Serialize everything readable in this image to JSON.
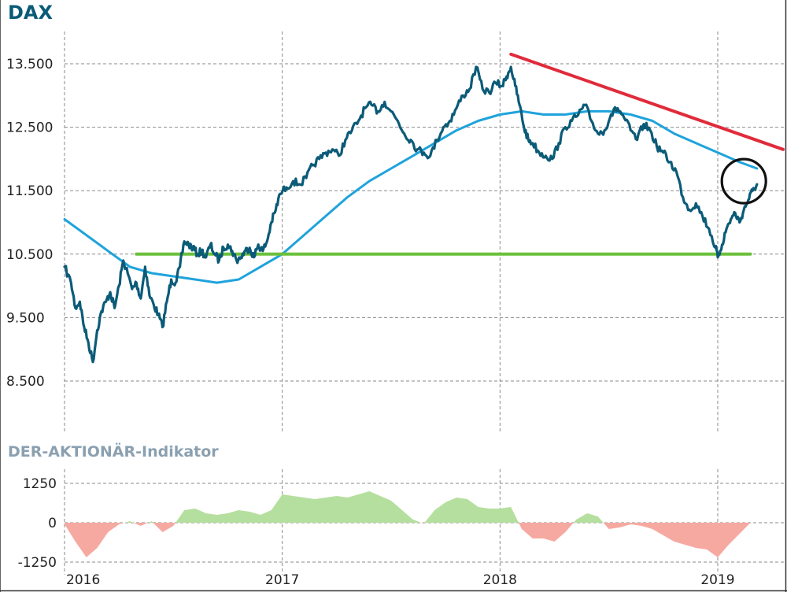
{
  "colors": {
    "price": "#0b5b78",
    "moving_average": "#1fa3dc",
    "resistance": "#e02b3b",
    "support": "#6cc03c",
    "positive_fill": "#b5df9e",
    "negative_fill": "#f6a9a1",
    "title": "#0b5b78",
    "subtitle": "#8aa0b0"
  },
  "chart_data": [
    {
      "type": "line",
      "title": "DAX",
      "xlabel": "",
      "ylabel": "",
      "x_ticks": [
        "2016",
        "2017",
        "2018",
        "2019"
      ],
      "y_ticks": [
        "13.500",
        "12.500",
        "11.500",
        "10.500",
        "9.500",
        "8.500"
      ],
      "y_tick_values": [
        13500,
        12500,
        11500,
        10500,
        9500,
        8500
      ],
      "ylim": [
        8000,
        14200
      ],
      "xlim": [
        2016.0,
        2019.25
      ],
      "grid": true,
      "series": [
        {
          "role": "price",
          "x": [
            2016.0,
            2016.03,
            2016.05,
            2016.07,
            2016.09,
            2016.11,
            2016.13,
            2016.15,
            2016.17,
            2016.19,
            2016.21,
            2016.23,
            2016.25,
            2016.27,
            2016.29,
            2016.31,
            2016.33,
            2016.35,
            2016.37,
            2016.39,
            2016.41,
            2016.43,
            2016.45,
            2016.47,
            2016.49,
            2016.51,
            2016.53,
            2016.55,
            2016.57,
            2016.59,
            2016.61,
            2016.63,
            2016.65,
            2016.67,
            2016.69,
            2016.71,
            2016.73,
            2016.75,
            2016.77,
            2016.79,
            2016.81,
            2016.83,
            2016.85,
            2016.87,
            2016.89,
            2016.91,
            2016.93,
            2016.95,
            2016.97,
            2016.99,
            2017.02,
            2017.05,
            2017.08,
            2017.11,
            2017.14,
            2017.17,
            2017.2,
            2017.23,
            2017.26,
            2017.29,
            2017.32,
            2017.35,
            2017.38,
            2017.41,
            2017.44,
            2017.47,
            2017.5,
            2017.53,
            2017.56,
            2017.59,
            2017.62,
            2017.65,
            2017.68,
            2017.71,
            2017.74,
            2017.77,
            2017.8,
            2017.83,
            2017.86,
            2017.89,
            2017.92,
            2017.95,
            2017.98,
            2018.01,
            2018.03,
            2018.05,
            2018.07,
            2018.09,
            2018.11,
            2018.13,
            2018.15,
            2018.18,
            2018.21,
            2018.24,
            2018.27,
            2018.3,
            2018.33,
            2018.36,
            2018.39,
            2018.42,
            2018.45,
            2018.48,
            2018.51,
            2018.54,
            2018.57,
            2018.6,
            2018.63,
            2018.66,
            2018.69,
            2018.72,
            2018.75,
            2018.78,
            2018.81,
            2018.84,
            2018.87,
            2018.9,
            2018.93,
            2018.96,
            2018.99,
            2019.0,
            2019.02,
            2019.04,
            2019.06,
            2019.08,
            2019.1,
            2019.12,
            2019.14,
            2019.16,
            2019.18
          ],
          "y": [
            10300,
            10050,
            9650,
            9750,
            9350,
            9100,
            8800,
            9300,
            9600,
            9750,
            9900,
            9650,
            10000,
            10400,
            10200,
            9950,
            10050,
            9800,
            10300,
            9850,
            9700,
            9550,
            9350,
            9750,
            10100,
            10050,
            10300,
            10700,
            10650,
            10600,
            10500,
            10550,
            10450,
            10650,
            10500,
            10400,
            10600,
            10650,
            10550,
            10400,
            10450,
            10550,
            10600,
            10450,
            10650,
            10550,
            10700,
            11000,
            11200,
            11450,
            11550,
            11650,
            11600,
            11700,
            11900,
            12000,
            12100,
            12150,
            12050,
            12300,
            12450,
            12600,
            12800,
            12850,
            12750,
            12900,
            12750,
            12600,
            12400,
            12300,
            12150,
            12100,
            12050,
            12300,
            12500,
            12600,
            12800,
            13000,
            13100,
            13450,
            13100,
            13050,
            13200,
            13150,
            13300,
            13450,
            13150,
            12850,
            12500,
            12300,
            12250,
            12100,
            12050,
            12000,
            12250,
            12500,
            12600,
            12700,
            12850,
            12600,
            12400,
            12450,
            12700,
            12800,
            12650,
            12450,
            12300,
            12550,
            12450,
            12200,
            12100,
            11950,
            11800,
            11400,
            11200,
            11300,
            11100,
            10900,
            10600,
            10450,
            10650,
            10900,
            11050,
            11150,
            11000,
            11200,
            11350,
            11500,
            11600
          ],
          "name": ""
        },
        {
          "role": "moving_average",
          "x": [
            2016.0,
            2016.1,
            2016.2,
            2016.3,
            2016.4,
            2016.5,
            2016.6,
            2016.7,
            2016.8,
            2016.9,
            2017.0,
            2017.1,
            2017.2,
            2017.3,
            2017.4,
            2017.5,
            2017.6,
            2017.7,
            2017.8,
            2017.9,
            2018.0,
            2018.1,
            2018.2,
            2018.3,
            2018.4,
            2018.5,
            2018.6,
            2018.7,
            2018.8,
            2018.9,
            2019.0,
            2019.1,
            2019.18
          ],
          "y": [
            11050,
            10800,
            10550,
            10300,
            10200,
            10150,
            10100,
            10050,
            10100,
            10300,
            10500,
            10800,
            11100,
            11400,
            11650,
            11850,
            12050,
            12250,
            12450,
            12600,
            12700,
            12750,
            12700,
            12700,
            12750,
            12750,
            12700,
            12600,
            12400,
            12250,
            12100,
            11950,
            11850
          ],
          "name": ""
        },
        {
          "role": "resistance",
          "x": [
            2018.05,
            2019.3
          ],
          "y": [
            13650,
            12150
          ],
          "name": ""
        },
        {
          "role": "support",
          "x": [
            2016.33,
            2019.15
          ],
          "y": [
            10500,
            10500
          ],
          "name": ""
        }
      ],
      "annotation": {
        "type": "circle",
        "x": 2019.12,
        "y": 11650
      }
    },
    {
      "type": "area",
      "title": "DER-AKTIONÄR-Indikator",
      "xlabel": "",
      "ylabel": "",
      "y_ticks": [
        "1250",
        "0",
        "-1250"
      ],
      "y_tick_values": [
        1250,
        0,
        -1250
      ],
      "ylim": [
        -1400,
        1400
      ],
      "grid": true,
      "series": [
        {
          "x": [
            2016.0,
            2016.05,
            2016.1,
            2016.15,
            2016.2,
            2016.25,
            2016.3,
            2016.35,
            2016.4,
            2016.45,
            2016.5,
            2016.55,
            2016.6,
            2016.65,
            2016.7,
            2016.75,
            2016.8,
            2016.85,
            2016.9,
            2016.95,
            2017.0,
            2017.05,
            2017.1,
            2017.15,
            2017.2,
            2017.25,
            2017.3,
            2017.35,
            2017.4,
            2017.45,
            2017.5,
            2017.55,
            2017.6,
            2017.65,
            2017.7,
            2017.75,
            2017.8,
            2017.85,
            2017.9,
            2017.95,
            2018.0,
            2018.05,
            2018.1,
            2018.15,
            2018.2,
            2018.25,
            2018.3,
            2018.35,
            2018.4,
            2018.45,
            2018.5,
            2018.55,
            2018.6,
            2018.65,
            2018.7,
            2018.75,
            2018.8,
            2018.85,
            2018.9,
            2018.95,
            2019.0,
            2019.05,
            2019.1,
            2019.15
          ],
          "y": [
            -50,
            -600,
            -1100,
            -800,
            -300,
            -50,
            50,
            -100,
            50,
            -300,
            -100,
            400,
            450,
            300,
            250,
            300,
            400,
            350,
            250,
            400,
            900,
            850,
            800,
            750,
            800,
            850,
            800,
            900,
            1000,
            850,
            700,
            400,
            100,
            -30,
            400,
            650,
            800,
            750,
            500,
            450,
            450,
            500,
            -200,
            -500,
            -500,
            -600,
            -300,
            100,
            300,
            200,
            -200,
            -150,
            -50,
            -100,
            -200,
            -400,
            -600,
            -700,
            -800,
            -850,
            -1100,
            -700,
            -350,
            0
          ],
          "name": ""
        }
      ]
    }
  ]
}
